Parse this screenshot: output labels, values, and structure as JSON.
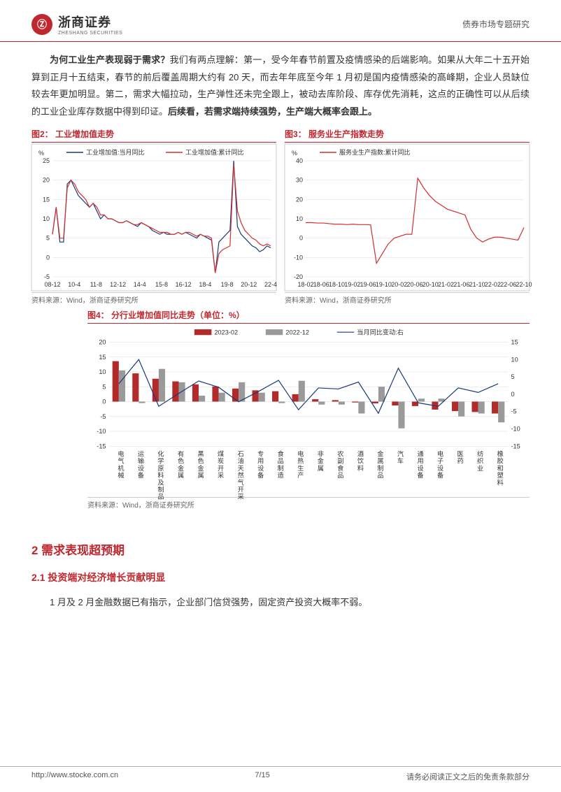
{
  "header": {
    "logo_cn": "浙商证券",
    "logo_en": "ZHESHANG SECURITIES",
    "logo_glyph": "Ⓩ",
    "right_text": "债券市场专题研究"
  },
  "body": {
    "para1_q": "为何工业生产表现弱于需求？",
    "para1_rest": "我们有两点理解：第一，受今年春节前置及疫情感染的后端影响。如果从大年二十五开始算到正月十五结束，春节的前后覆盖周期大约有 20 天，而去年年底至今年 1 月初是国内疫情感染的高峰期，企业人员缺位较去年更加明显。第二，需求大幅拉动，生产弹性还未完全跟上，被动去库阶段、库存优先消耗，这点的正确性可以从后续的工业企业库存数据中得到印证。",
    "para1_bold": "后续看，若需求端持续强势，生产端大概率会跟上。"
  },
  "chart2": {
    "title": "图2：  工业增加值走势",
    "type": "line",
    "y_unit": "%",
    "ylim": [
      -5,
      25
    ],
    "yticks": [
      -5,
      0,
      5,
      10,
      15,
      20,
      25
    ],
    "xticks": [
      "08-12",
      "10-4",
      "11-8",
      "12-12",
      "14-4",
      "15-8",
      "16-12",
      "18-4",
      "19-8",
      "20-12",
      "22-4"
    ],
    "series": [
      {
        "name": "工业增加值:当月同比",
        "color": "#1a3a7a",
        "values": [
          6,
          13,
          4,
          4,
          19,
          20,
          18,
          16,
          15,
          14,
          13,
          14,
          12,
          10,
          11,
          10,
          10,
          9.5,
          9,
          9,
          9.5,
          9,
          8.5,
          8,
          9,
          8.5,
          8,
          7,
          6.5,
          6,
          6.5,
          6,
          6,
          6,
          6.5,
          6,
          6.5,
          6,
          5.5,
          5,
          6,
          5.5,
          5,
          4.5,
          -4,
          4,
          5,
          6,
          7,
          25,
          8,
          6,
          5,
          4,
          3,
          2.5,
          1.5,
          2,
          3,
          2.5
        ]
      },
      {
        "name": "工业增加值:累计同比",
        "color": "#d03030",
        "values": [
          6,
          13,
          5,
          5,
          18,
          20,
          19,
          17,
          16,
          15,
          13,
          14,
          13,
          11,
          11,
          10,
          10,
          9.5,
          9,
          9,
          9.5,
          9,
          8.5,
          8.5,
          9,
          8.5,
          8,
          7.5,
          7,
          6.5,
          6.5,
          6.5,
          6,
          6,
          6.5,
          6,
          6.5,
          6.5,
          6,
          5.5,
          6,
          5.5,
          5.5,
          5,
          -4,
          1,
          2,
          2.5,
          3,
          24,
          12,
          9,
          7,
          6,
          5,
          4.5,
          3.5,
          3,
          3.5,
          3
        ]
      }
    ],
    "background_color": "#ffffff",
    "grid_color": "#d9d9d9",
    "source": "资料来源：Wind，浙商证券研究所"
  },
  "chart3": {
    "title": "图3：  服务业生产指数走势",
    "type": "line",
    "y_unit": "%",
    "ylim": [
      -20,
      40
    ],
    "yticks": [
      -20,
      -10,
      0,
      10,
      20,
      30,
      40
    ],
    "xticks": [
      "18-02",
      "18-06",
      "18-10",
      "19-02",
      "19-06",
      "19-10",
      "20-02",
      "20-06",
      "20-10",
      "21-02",
      "21-06",
      "21-10",
      "22-02",
      "22-06",
      "22-10"
    ],
    "series": [
      {
        "name": "服务业生产指数:累计同比",
        "color": "#d03030",
        "values": [
          8,
          8,
          7.8,
          7.8,
          7.5,
          7.2,
          7.2,
          7,
          7.2,
          7,
          7,
          6.9,
          -13,
          -8,
          -3,
          0,
          1,
          2,
          2,
          31,
          26,
          22,
          19,
          17,
          15,
          14,
          13,
          12,
          4.5,
          0,
          -2,
          -0.5,
          0.5,
          0.5,
          0,
          -0.5,
          -1,
          5.5
        ]
      }
    ],
    "background_color": "#ffffff",
    "grid_color": "#d9d9d9",
    "source": "资料来源：Wind，浙商证券研究所"
  },
  "chart4": {
    "title": "图4：  分行业增加值同比走势（单位：%）",
    "type": "bar_line",
    "categories": [
      "电气机械",
      "运输设备",
      "化学原料及制品",
      "有色金属",
      "黑色金属",
      "煤炭开采",
      "石油天然气开采",
      "专用设备",
      "食品制造",
      "电热生产",
      "非金属",
      "农副食品",
      "酒饮料",
      "金属制品",
      "汽车",
      "通用设备",
      "电子设备",
      "医药",
      "纺织业",
      "橡胶和塑料"
    ],
    "left_ylim": [
      -15,
      20
    ],
    "left_yticks": [
      -15,
      -10,
      -5,
      0,
      5,
      10,
      15,
      20
    ],
    "right_ylim": [
      -15,
      15
    ],
    "right_yticks": [
      -15,
      -10,
      -5,
      0,
      5,
      10,
      15
    ],
    "bars": [
      {
        "name": "2023-02",
        "color": "#b22a2a",
        "values": [
          13.6,
          9.5,
          7.7,
          6.8,
          5.8,
          5.1,
          4.4,
          3.8,
          3.5,
          2.5,
          0.8,
          0.5,
          -0.3,
          -0.6,
          -1.3,
          -1.5,
          -2.7,
          -3.2,
          -3.5,
          -4.0
        ]
      },
      {
        "name": "2022-12",
        "color": "#9a9a9a",
        "values": [
          10.5,
          -0.5,
          11,
          6.5,
          2,
          3,
          6.5,
          3,
          -0.5,
          7,
          -1,
          -1,
          -4,
          5,
          -9,
          1,
          1,
          -5,
          -4,
          -7
        ]
      }
    ],
    "line": {
      "name": "当月同比变动:右",
      "color": "#1a3a7a",
      "values": [
        3,
        10,
        -3.5,
        0.2,
        3.8,
        2,
        -2.2,
        0.8,
        4,
        -4.5,
        1.8,
        1.5,
        3.5,
        -5.5,
        7.5,
        -2.5,
        -3.5,
        1.8,
        0.5,
        3
      ]
    },
    "background_color": "#ffffff",
    "grid_color": "#d9d9d9",
    "source": "资料来源：Wind，浙商证券研究所"
  },
  "sections": {
    "h1": "2 需求表现超预期",
    "h2": "2.1 投资端对经济增长贡献明显",
    "para": "1 月及 2 月金融数据已有指示，企业部门信贷强势，固定资产投资大概率不弱。"
  },
  "footer": {
    "left": "http://www.stocke.com.cn",
    "center": "7/15",
    "right": "请务必阅读正文之后的免责条款部分"
  }
}
